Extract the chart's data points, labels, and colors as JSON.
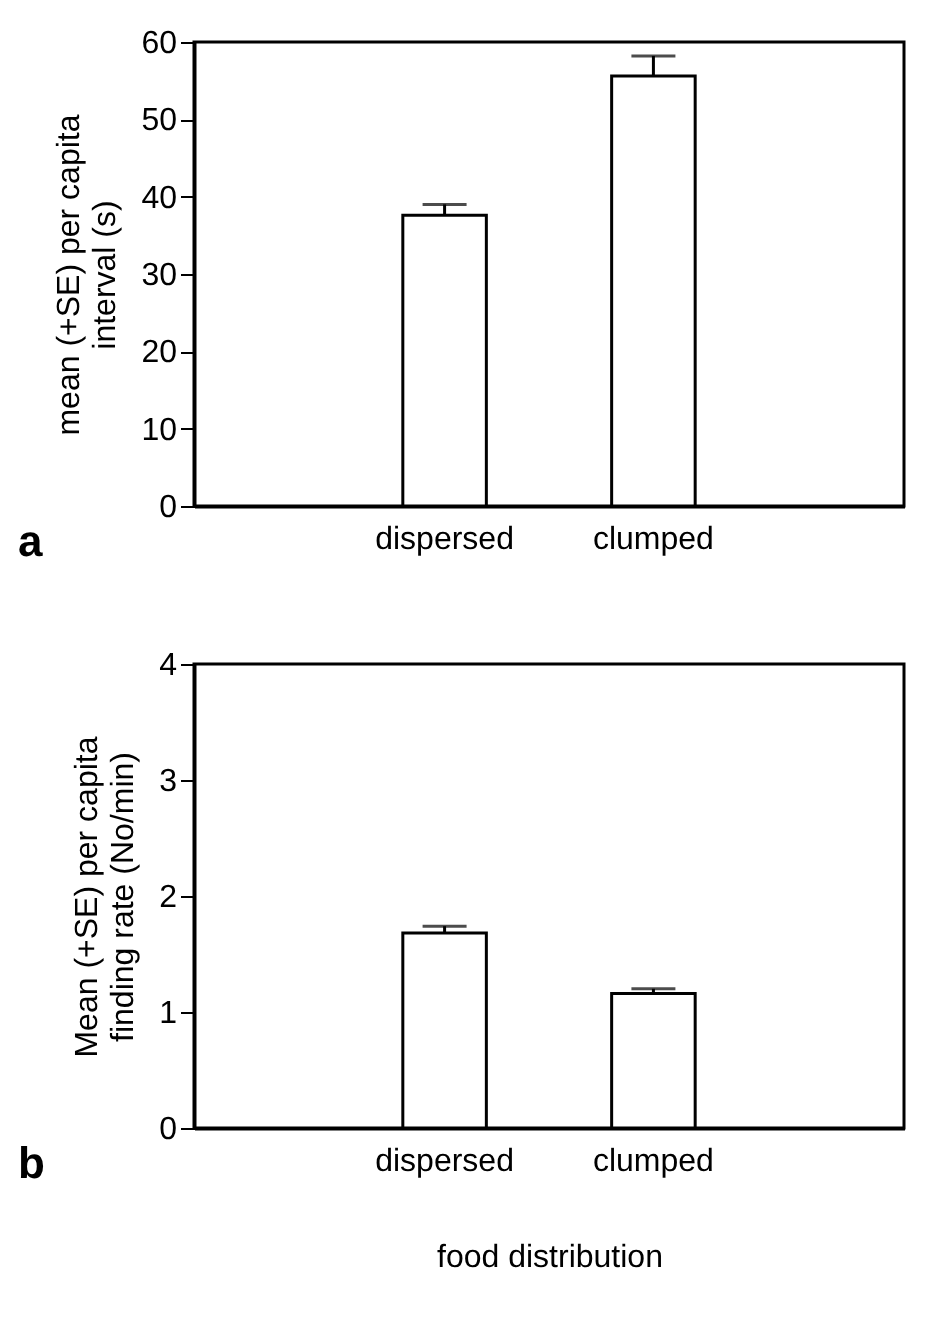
{
  "chart_data": [
    {
      "type": "bar",
      "ylabel": "mean (+SE) per capita interval (s)",
      "categories": [
        "dispersed",
        "clumped"
      ],
      "values": [
        37.6,
        55.6
      ],
      "errors": [
        [
          37.6,
          39.0
        ],
        [
          55.6,
          58.2
        ]
      ],
      "color": "#ffffff",
      "ylim": [
        0,
        60
      ],
      "yticks": [
        0,
        10,
        20,
        30,
        40,
        50,
        60
      ],
      "grid": false,
      "annotations": [
        "a"
      ]
    },
    {
      "type": "bar",
      "ylabel": "Mean (+SE) per capita finding rate (No/min)",
      "xlabel": "food distribution",
      "categories": [
        "dispersed",
        "clumped"
      ],
      "values": [
        1.68,
        1.16
      ],
      "errors": [
        [
          1.68,
          1.74
        ],
        [
          1.16,
          1.2
        ]
      ],
      "color": "#ffffff",
      "ylim": [
        0,
        4
      ],
      "yticks": [
        0,
        1,
        2,
        3,
        4
      ],
      "grid": false,
      "annotations": [
        "b"
      ]
    }
  ]
}
